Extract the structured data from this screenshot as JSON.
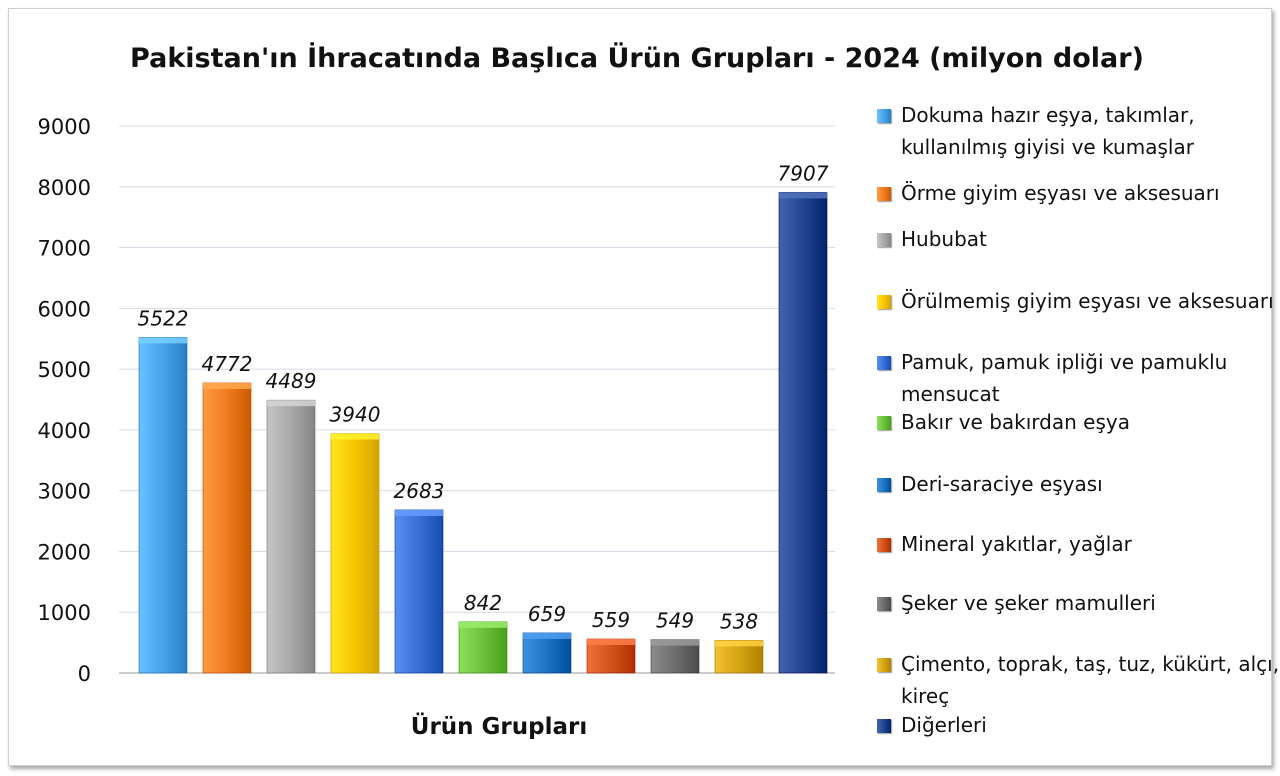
{
  "chart_data": {
    "type": "bar",
    "title": "Pakistan'ın İhracatında Başlıca Ürün Grupları - 2024 (milyon dolar)",
    "xlabel": "Ürün Grupları",
    "ylabel": "",
    "ylim": [
      0,
      9000
    ],
    "yticks": [
      0,
      1000,
      2000,
      3000,
      4000,
      5000,
      6000,
      7000,
      8000,
      9000
    ],
    "grid": true,
    "legend_position": "right",
    "categories": [
      "Dokuma hazır eşya, takımlar, kullanılmış giyisi ve kumaşlar",
      "Örme giyim eşyası ve aksesuarı",
      "Hububat",
      "Örülmemiş giyim eşyası ve aksesuarı",
      "Pamuk, pamuk ipliği ve pamuklu mensucat",
      "Bakır ve bakırdan eşya",
      "Deri-saraciye eşyası",
      "Mineral yakıtlar, yağlar",
      "Şeker ve şeker mamulleri",
      "Çimento, toprak, taş, tuz, kükürt, alçı, kireç",
      "Diğerleri"
    ],
    "values": [
      5522,
      4772,
      4489,
      3940,
      2683,
      842,
      659,
      559,
      549,
      538,
      7907
    ],
    "data_labels": [
      "5522",
      "4772",
      "4489",
      "3940",
      "2683",
      "842",
      "659",
      "559",
      "549",
      "538",
      "7907"
    ],
    "legend": [
      "Dokuma hazır eşya, takımlar, kullanılmış giyisi ve kumaşlar",
      "Örme giyim eşyası ve aksesuarı",
      "Hububat",
      "Örülmemiş giyim eşyası ve aksesuarı",
      "Pamuk, pamuk ipliği ve pamuklu mensucat",
      "Bakır ve bakırdan eşya",
      "Deri-saraciye eşyası",
      "Mineral yakıtlar, yağlar",
      "Şeker ve şeker mamulleri",
      "Çimento, toprak, taş, tuz, kükürt, alçı, kireç",
      "Diğerleri"
    ],
    "colors": [
      "#4aa3e8",
      "#f07c22",
      "#a8a8a8",
      "#f7c600",
      "#3a6fd6",
      "#6cc23a",
      "#1f73c4",
      "#d3521c",
      "#6e6e6e",
      "#d4a414",
      "#24458f"
    ]
  }
}
